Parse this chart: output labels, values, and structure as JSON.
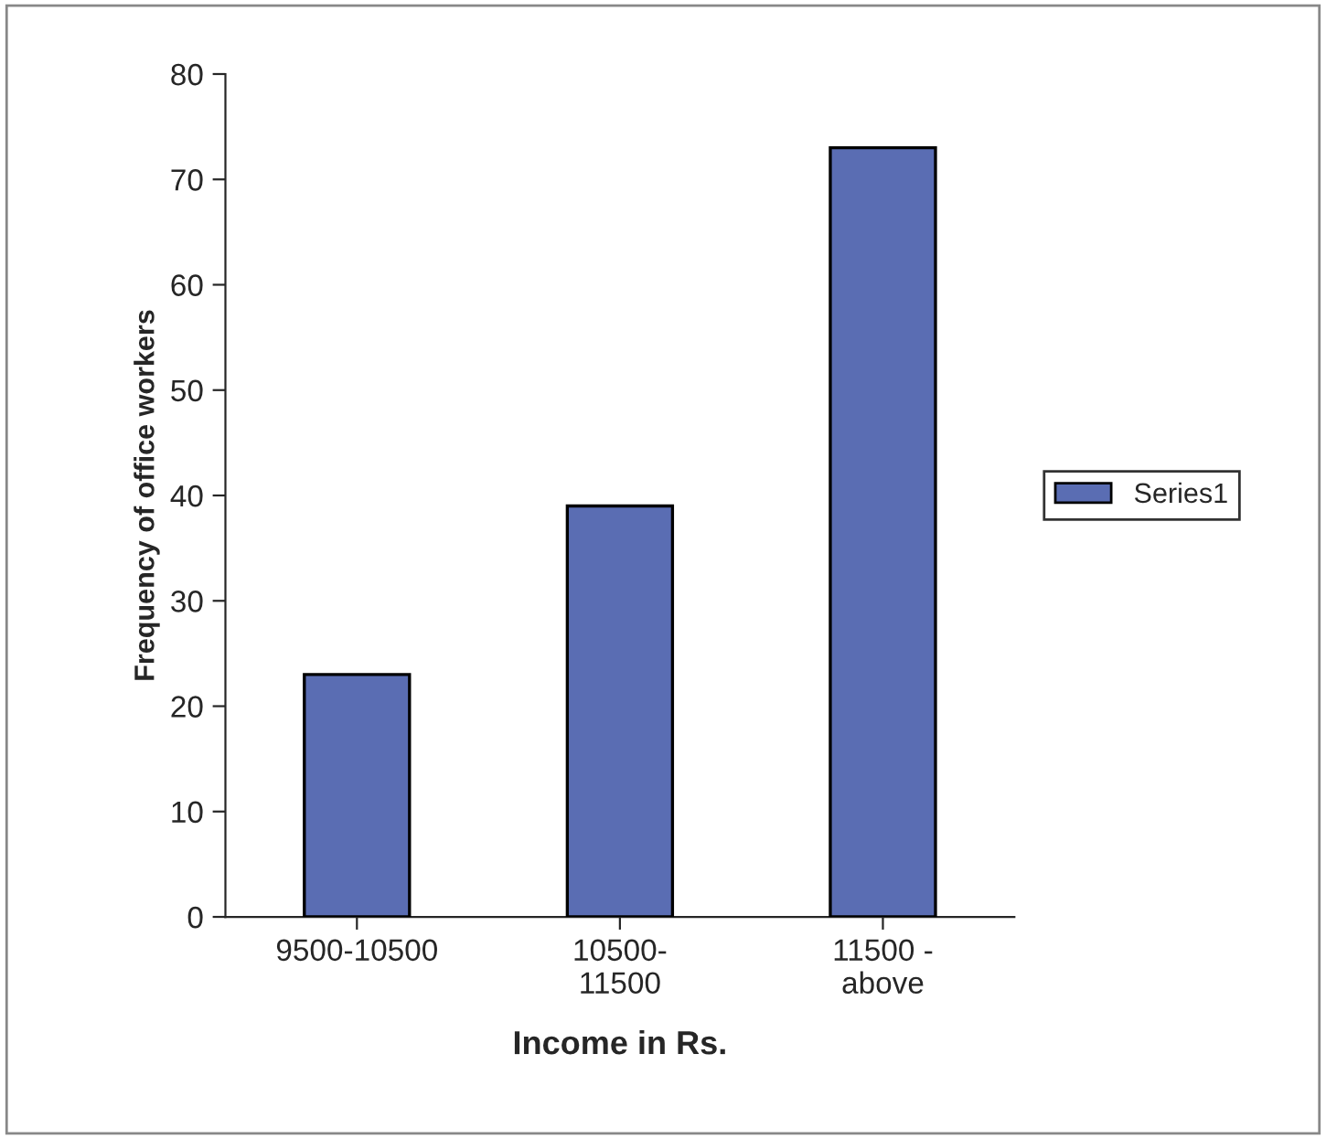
{
  "chart_data": {
    "type": "bar",
    "xlabel": "Income in Rs.",
    "ylabel": "Frequency of office workers",
    "categories": [
      "9500-10500",
      "10500-\n11500",
      "11500 -\nabove"
    ],
    "series": [
      {
        "name": "Series1",
        "color": "#5a6db3",
        "values": [
          23,
          39,
          73
        ]
      }
    ],
    "ylim": [
      0,
      80
    ],
    "yticks": [
      0,
      10,
      20,
      30,
      40,
      50,
      60,
      70,
      80
    ],
    "grid": false,
    "legend": "right"
  }
}
